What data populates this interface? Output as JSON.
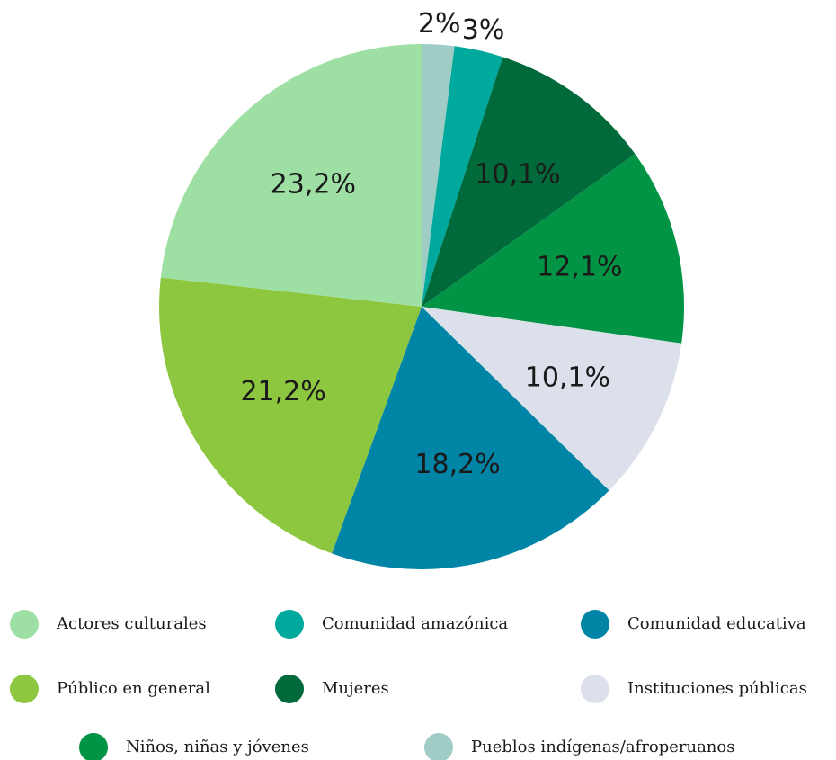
{
  "chart_data": {
    "type": "pie",
    "categories": [
      "Pueblos indígenas/afroperuanos",
      "Comunidad amazónica",
      "Mujeres",
      "Niños, niñas y jóvenes",
      "Instituciones públicas",
      "Comunidad educativa",
      "Público en general",
      "Actores culturales"
    ],
    "values": [
      2,
      3,
      10.1,
      12.1,
      10.1,
      18.2,
      21.2,
      23.2
    ],
    "value_labels": [
      "2%",
      "3%",
      "10,1%",
      "12,1%",
      "10,1%",
      "18,2%",
      "21,2%",
      "23,2%"
    ],
    "colors": [
      "#9fcdc6",
      "#00a99d",
      "#006a3a",
      "#009444",
      "#dce0ea",
      "#0085a6",
      "#8dc63f",
      "#9ee0a3"
    ],
    "legend": true
  }
}
